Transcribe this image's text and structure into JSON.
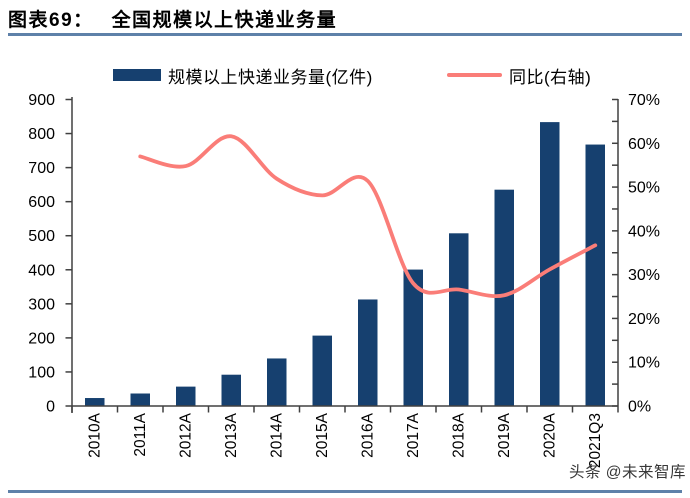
{
  "header": {
    "figure_label": "图表69：",
    "title": "全国规模以上快递业务量"
  },
  "legend": {
    "bar_label": "规模以上快递业务量(亿件)",
    "line_label": "同比(右轴)"
  },
  "watermark": "头条 @未来智库",
  "colors": {
    "bar": "#16406F",
    "line": "#FA7D78",
    "rule": "#5E81A9",
    "axis": "#404040",
    "text": "#000000",
    "watermark": "#383838"
  },
  "chart_data": {
    "type": "bar",
    "title": "全国规模以上快递业务量",
    "categories": [
      "2010A",
      "2011A",
      "2012A",
      "2013A",
      "2014A",
      "2015A",
      "2016A",
      "2017A",
      "2018A",
      "2019A",
      "2020A",
      "2021Q3"
    ],
    "series": [
      {
        "name": "规模以上快递业务量(亿件)",
        "type": "bar",
        "axis": "left",
        "values": [
          23.4,
          36.7,
          56.9,
          91.9,
          139.6,
          206.7,
          312.8,
          400.6,
          507.1,
          635.2,
          833.6,
          767.7
        ]
      },
      {
        "name": "同比(右轴)",
        "type": "line",
        "axis": "right",
        "values": [
          null,
          57.0,
          54.8,
          61.6,
          51.9,
          48.1,
          51.4,
          28.0,
          26.6,
          25.3,
          31.2,
          36.7
        ]
      }
    ],
    "left_axis": {
      "label": "亿件",
      "min": 0,
      "max": 900,
      "step": 100,
      "suffix": ""
    },
    "right_axis": {
      "label": "同比",
      "min": 0,
      "max": 70,
      "step": 10,
      "minor_step": 5,
      "suffix": "%"
    },
    "grid": false,
    "legend_position": "top",
    "line_smooth": true
  }
}
